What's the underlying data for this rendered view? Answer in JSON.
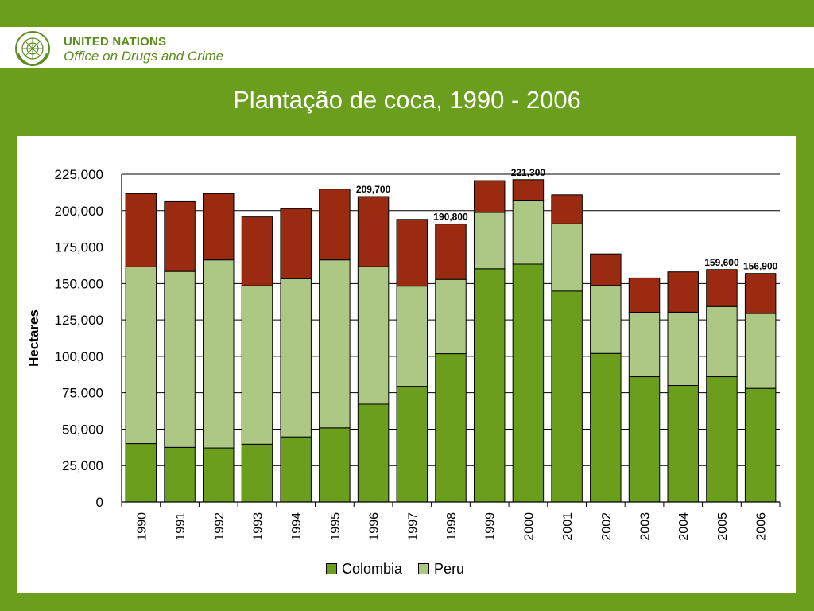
{
  "header": {
    "org_line1": "UNITED NATIONS",
    "org_line2": "Office on Drugs and Crime",
    "logo_icon": "un-emblem-icon"
  },
  "slide_title": "Plantação de coca, 1990 - 2006",
  "colors": {
    "background": "#6a9e1c",
    "colombia": "#6a9e1c",
    "peru": "#adc884",
    "bolivia": "#9a2a10",
    "logo": "#5c8c1f"
  },
  "chart_data": {
    "type": "bar",
    "stacked": true,
    "title": "",
    "xlabel": "",
    "ylabel": "Hectares",
    "ylim": [
      0,
      225000
    ],
    "yticks": [
      0,
      25000,
      50000,
      75000,
      100000,
      125000,
      150000,
      175000,
      200000,
      225000
    ],
    "ytick_labels": [
      "0",
      "25,000",
      "50,000",
      "75,000",
      "100,000",
      "125,000",
      "150,000",
      "175,000",
      "200,000",
      "225,000"
    ],
    "grid": true,
    "legend_position": "bottom",
    "categories": [
      "1990",
      "1991",
      "1992",
      "1993",
      "1994",
      "1995",
      "1996",
      "1997",
      "1998",
      "1999",
      "2000",
      "2001",
      "2002",
      "2003",
      "2004",
      "2005",
      "2006"
    ],
    "series": [
      {
        "name": "Colombia",
        "values": [
          40100,
          37500,
          37100,
          39700,
          44700,
          50900,
          67200,
          79400,
          101800,
          160100,
          163300,
          144800,
          102000,
          86000,
          80000,
          86000,
          78000
        ]
      },
      {
        "name": "Peru",
        "values": [
          121300,
          120800,
          129100,
          108800,
          108600,
          115300,
          94400,
          68800,
          51000,
          38700,
          43400,
          46200,
          46700,
          44200,
          50300,
          48200,
          51400
        ]
      },
      {
        "name": "",
        "values": [
          50300,
          47900,
          45500,
          47200,
          48100,
          48600,
          48100,
          45800,
          38000,
          21800,
          14600,
          19900,
          21600,
          23600,
          27700,
          25400,
          27500
        ]
      }
    ],
    "data_labels": [
      {
        "category": "1996",
        "text": "209,700"
      },
      {
        "category": "1998",
        "text": "190,800"
      },
      {
        "category": "2000",
        "text": "221,300"
      },
      {
        "category": "2005",
        "text": "159,600"
      },
      {
        "category": "2006",
        "text": "156,900"
      }
    ]
  }
}
